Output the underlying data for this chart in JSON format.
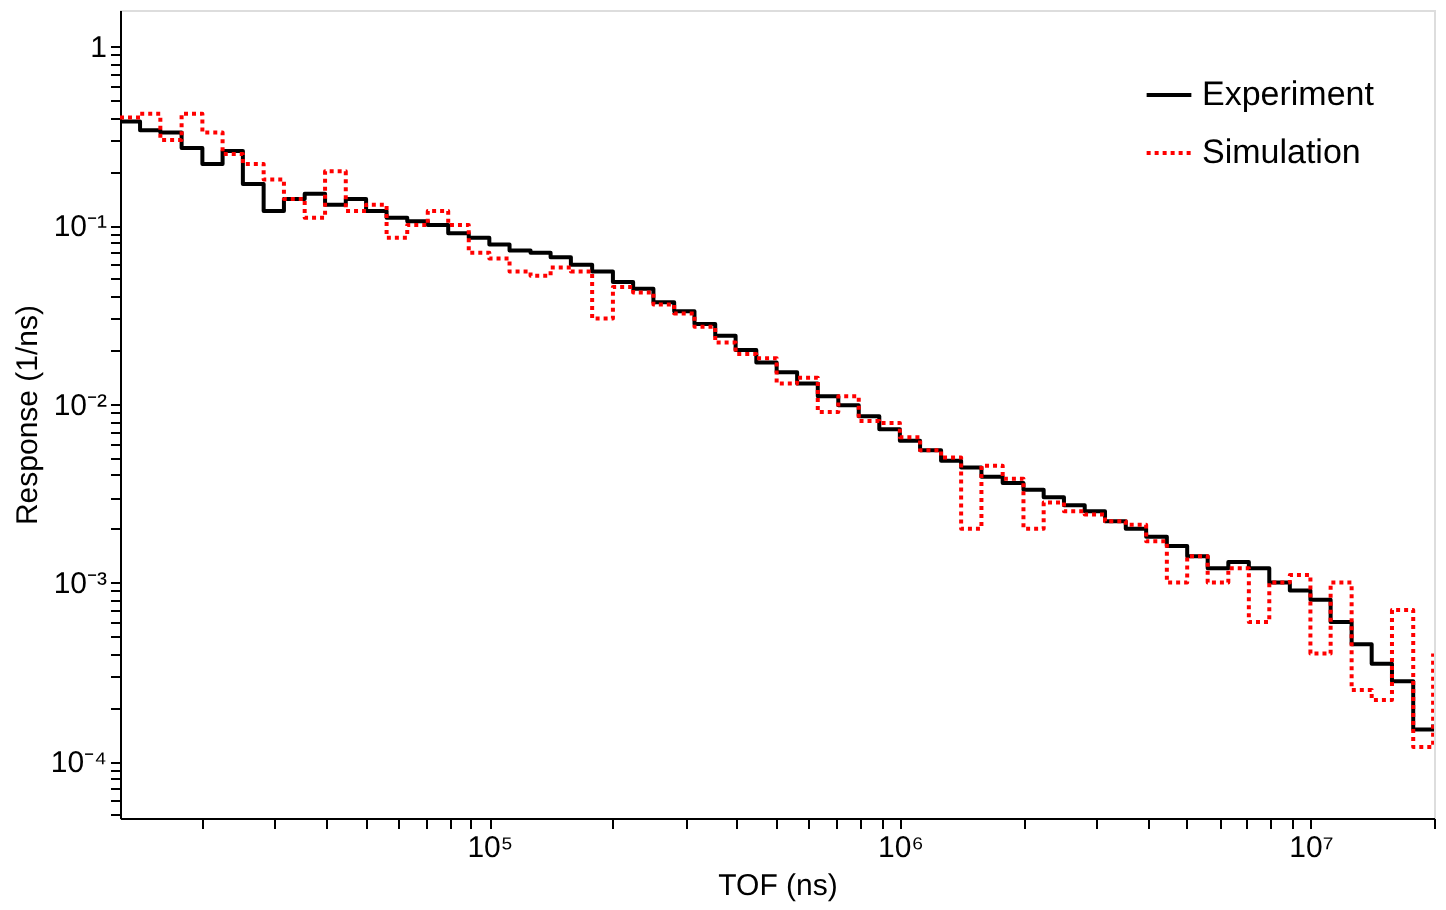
{
  "chart_data": {
    "type": "step",
    "xlabel": "TOF (ns)",
    "ylabel": "Response (1/ns)",
    "log": "xy",
    "grid": false,
    "legend": "top right",
    "xlim": [
      12600,
      20000000
    ],
    "ylim": [
      4.8e-05,
      1.6
    ],
    "xticks": [
      {
        "value": 20000,
        "label": null
      },
      {
        "value": 30000,
        "label": null
      },
      {
        "value": 40000,
        "label": null
      },
      {
        "value": 50000,
        "label": null
      },
      {
        "value": 60000,
        "label": null
      },
      {
        "value": 70000,
        "label": null
      },
      {
        "value": 80000,
        "label": null
      },
      {
        "value": 90000,
        "label": null
      },
      {
        "value": 100000,
        "label": "10⁵"
      },
      {
        "value": 200000,
        "label": null
      },
      {
        "value": 300000,
        "label": null
      },
      {
        "value": 400000,
        "label": null
      },
      {
        "value": 500000,
        "label": null
      },
      {
        "value": 600000,
        "label": null
      },
      {
        "value": 700000,
        "label": null
      },
      {
        "value": 800000,
        "label": null
      },
      {
        "value": 900000,
        "label": null
      },
      {
        "value": 1000000,
        "label": "10⁶"
      },
      {
        "value": 2000000,
        "label": null
      },
      {
        "value": 3000000,
        "label": null
      },
      {
        "value": 4000000,
        "label": null
      },
      {
        "value": 5000000,
        "label": null
      },
      {
        "value": 6000000,
        "label": null
      },
      {
        "value": 7000000,
        "label": null
      },
      {
        "value": 8000000,
        "label": null
      },
      {
        "value": 9000000,
        "label": null
      },
      {
        "value": 10000000,
        "label": "10⁷"
      },
      {
        "value": 20000000,
        "label": null
      }
    ],
    "yticks": [
      {
        "value": 5e-05,
        "label": null
      },
      {
        "value": 6e-05,
        "label": null
      },
      {
        "value": 7e-05,
        "label": null
      },
      {
        "value": 8e-05,
        "label": null
      },
      {
        "value": 9e-05,
        "label": null
      },
      {
        "value": 0.0001,
        "label": "10⁻⁴"
      },
      {
        "value": 0.0002,
        "label": null
      },
      {
        "value": 0.0003,
        "label": null
      },
      {
        "value": 0.0004,
        "label": null
      },
      {
        "value": 0.0005,
        "label": null
      },
      {
        "value": 0.0006,
        "label": null
      },
      {
        "value": 0.0007,
        "label": null
      },
      {
        "value": 0.0008,
        "label": null
      },
      {
        "value": 0.0009,
        "label": null
      },
      {
        "value": 0.001,
        "label": "10⁻³"
      },
      {
        "value": 0.002,
        "label": null
      },
      {
        "value": 0.003,
        "label": null
      },
      {
        "value": 0.004,
        "label": null
      },
      {
        "value": 0.005,
        "label": null
      },
      {
        "value": 0.006,
        "label": null
      },
      {
        "value": 0.007,
        "label": null
      },
      {
        "value": 0.008,
        "label": null
      },
      {
        "value": 0.009,
        "label": null
      },
      {
        "value": 0.01,
        "label": "10⁻²"
      },
      {
        "value": 0.02,
        "label": null
      },
      {
        "value": 0.03,
        "label": null
      },
      {
        "value": 0.04,
        "label": null
      },
      {
        "value": 0.05,
        "label": null
      },
      {
        "value": 0.06,
        "label": null
      },
      {
        "value": 0.07,
        "label": null
      },
      {
        "value": 0.08,
        "label": null
      },
      {
        "value": 0.09,
        "label": null
      },
      {
        "value": 0.1,
        "label": "10⁻¹"
      },
      {
        "value": 0.2,
        "label": null
      },
      {
        "value": 0.3,
        "label": null
      },
      {
        "value": 0.4,
        "label": null
      },
      {
        "value": 0.5,
        "label": null
      },
      {
        "value": 0.6,
        "label": null
      },
      {
        "value": 0.7,
        "label": null
      },
      {
        "value": 0.8,
        "label": null
      },
      {
        "value": 0.9,
        "label": null
      },
      1
    ],
    "x": [
      12600,
      14100,
      15800,
      17800,
      20000,
      22400,
      25100,
      28200,
      31600,
      35500,
      39800,
      44700,
      50100,
      56200,
      63100,
      70800,
      79400,
      89100,
      100000,
      112000,
      126000,
      141000,
      158000,
      178000,
      200000,
      224000,
      251000,
      282000,
      316000,
      355000,
      398000,
      447000,
      501000,
      562000,
      631000,
      708000,
      794000,
      891000,
      1000000,
      1120000,
      1260000,
      1410000,
      1580000,
      1780000,
      2000000,
      2240000,
      2510000,
      2820000,
      3160000,
      3550000,
      3980000,
      4470000,
      5010000,
      5620000,
      6310000,
      7080000,
      7940000,
      8910000,
      10000000,
      11200000,
      12600000,
      14100000,
      15800000,
      17800000,
      19900000
    ],
    "series": [
      {
        "name": "Experiment",
        "color": "#000000",
        "line_style": "solid",
        "values": [
          0.38,
          0.34,
          0.33,
          0.27,
          0.22,
          0.26,
          0.17,
          0.12,
          0.14,
          0.15,
          0.13,
          0.14,
          0.12,
          0.11,
          0.105,
          0.1,
          0.09,
          0.085,
          0.078,
          0.072,
          0.07,
          0.066,
          0.06,
          0.055,
          0.048,
          0.044,
          0.037,
          0.033,
          0.028,
          0.024,
          0.02,
          0.017,
          0.015,
          0.013,
          0.011,
          0.0098,
          0.0085,
          0.0072,
          0.0062,
          0.0055,
          0.0048,
          0.0044,
          0.0039,
          0.0036,
          0.0033,
          0.003,
          0.0027,
          0.0025,
          0.0022,
          0.002,
          0.0018,
          0.0016,
          0.0014,
          0.0012,
          0.0013,
          0.0012,
          0.001,
          0.0009,
          0.0008,
          0.0006,
          0.00045,
          0.00035,
          0.00028,
          0.00015,
          0.00016
        ]
      },
      {
        "name": "Simulation",
        "color": "#ff0000",
        "line_style": "dotted",
        "values": [
          0.4,
          0.42,
          0.3,
          0.42,
          0.33,
          0.25,
          0.22,
          0.18,
          0.14,
          0.11,
          0.2,
          0.12,
          0.13,
          0.085,
          0.1,
          0.12,
          0.1,
          0.07,
          0.065,
          0.055,
          0.052,
          0.058,
          0.055,
          0.03,
          0.045,
          0.042,
          0.036,
          0.032,
          0.027,
          0.022,
          0.019,
          0.018,
          0.013,
          0.014,
          0.009,
          0.011,
          0.008,
          0.0078,
          0.0065,
          0.0055,
          0.005,
          0.002,
          0.0045,
          0.0038,
          0.002,
          0.0028,
          0.0025,
          0.0024,
          0.0022,
          0.0021,
          0.0017,
          0.001,
          0.0014,
          0.001,
          0.0012,
          0.0006,
          0.001,
          0.0011,
          0.0004,
          0.001,
          0.00025,
          0.00022,
          0.0007,
          0.00012,
          0.0004
        ]
      }
    ]
  }
}
